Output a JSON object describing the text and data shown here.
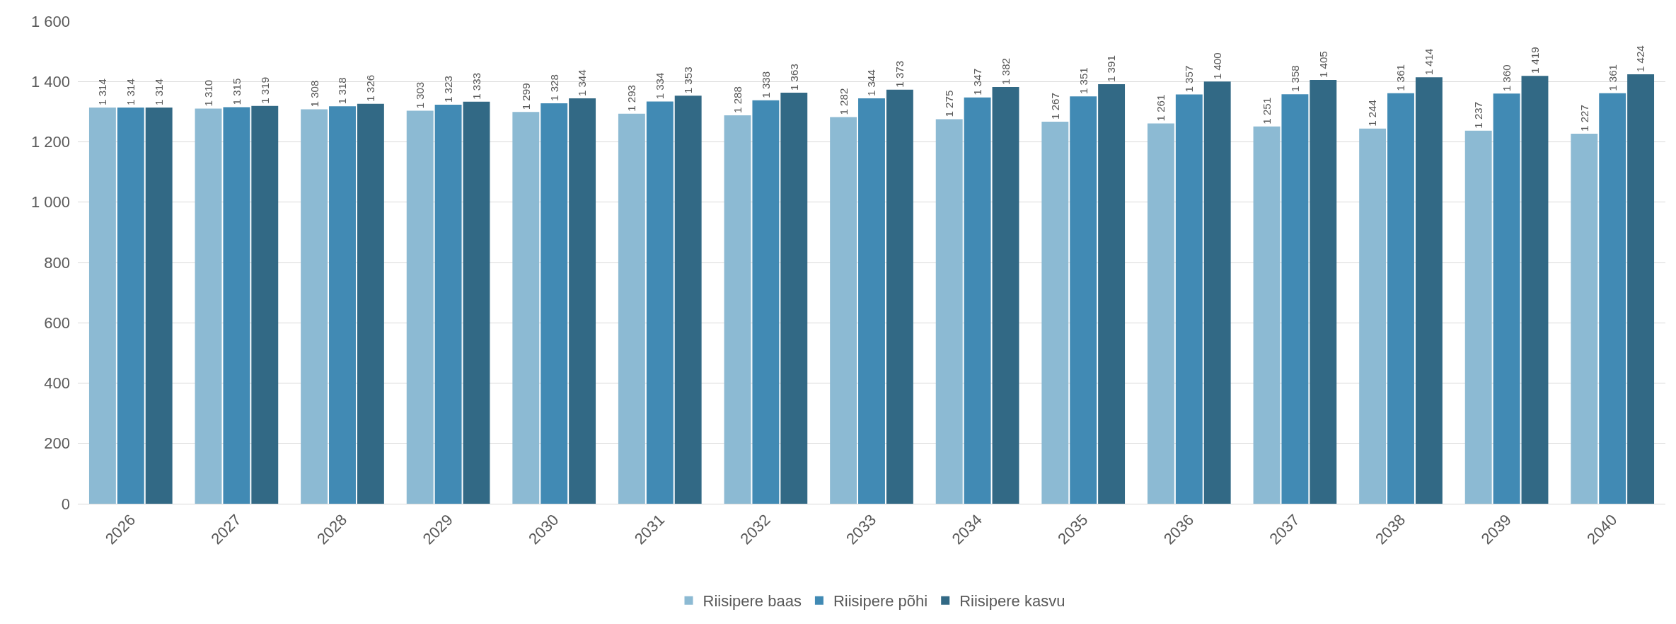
{
  "chart_data": {
    "type": "bar",
    "categories": [
      "2026",
      "2027",
      "2028",
      "2029",
      "2030",
      "2031",
      "2032",
      "2033",
      "2034",
      "2035",
      "2036",
      "2037",
      "2038",
      "2039",
      "2040"
    ],
    "series": [
      {
        "name": "Riisipere baas",
        "color": "#8cbad3",
        "values": [
          1314,
          1310,
          1308,
          1303,
          1299,
          1293,
          1288,
          1282,
          1275,
          1267,
          1261,
          1251,
          1244,
          1237,
          1227
        ]
      },
      {
        "name": "Riisipere põhi",
        "color": "#418ab4",
        "values": [
          1314,
          1315,
          1318,
          1323,
          1328,
          1334,
          1338,
          1344,
          1347,
          1351,
          1357,
          1358,
          1361,
          1360,
          1361
        ]
      },
      {
        "name": "Riisipere kasvu",
        "color": "#326985",
        "values": [
          1314,
          1319,
          1326,
          1333,
          1344,
          1353,
          1363,
          1373,
          1382,
          1391,
          1400,
          1405,
          1414,
          1419,
          1424
        ]
      }
    ],
    "ylim": [
      0,
      1600
    ],
    "yticks": [
      0,
      {
        "value": 200,
        "label": "200"
      },
      {
        "value": 400,
        "label": "400"
      },
      {
        "value": 600,
        "label": "600"
      },
      {
        "value": 800,
        "label": "800"
      },
      {
        "value": 1000,
        "label": "1 000"
      },
      {
        "value": 1200,
        "label": "1 200"
      },
      {
        "value": 1400,
        "label": "1 400"
      },
      {
        "value": 1600,
        "label": "1 600"
      }
    ],
    "grid": "y",
    "legend": "bottom",
    "data_labels": true
  }
}
